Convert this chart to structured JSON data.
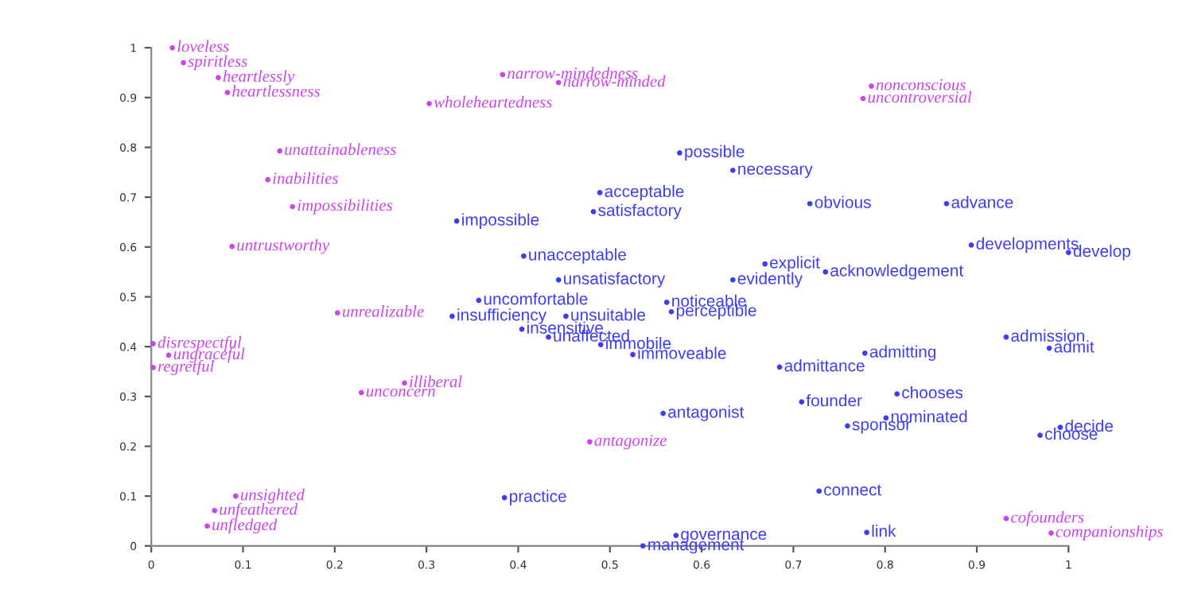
{
  "chart_data": {
    "type": "scatter",
    "marker": "circle",
    "xlim": [
      0,
      1
    ],
    "ylim": [
      0,
      1
    ],
    "xticks": [
      0,
      0.1,
      0.2,
      0.3,
      0.4,
      0.5,
      0.6,
      0.7,
      0.8,
      0.9,
      1
    ],
    "yticks": [
      0,
      0.1,
      0.2,
      0.3,
      0.4,
      0.5,
      0.6,
      0.7,
      0.8,
      0.9,
      1
    ],
    "grid": false,
    "series": [
      {
        "color": "#cc44ee",
        "x": [
          0.023,
          0.035,
          0.073,
          0.083,
          0.383,
          0.444,
          0.303,
          0.785,
          0.776,
          0.14,
          0.127,
          0.154,
          0.088,
          0.203,
          0.002,
          0.019,
          0.002,
          0.276,
          0.229,
          0.478,
          0.092,
          0.069,
          0.061,
          0.932,
          0.981
        ],
        "values": [
          1.0,
          0.97,
          0.94,
          0.91,
          0.946,
          0.93,
          0.888,
          0.923,
          0.898,
          0.793,
          0.735,
          0.681,
          0.601,
          0.468,
          0.406,
          0.383,
          0.358,
          0.327,
          0.308,
          0.209,
          0.1,
          0.071,
          0.04,
          0.055,
          0.026
        ],
        "value_labels": [
          "loveless",
          "spiritless",
          "heartlessly",
          "heartlessness",
          "narrow-mindedness",
          "narrow-minded",
          "wholeheartedness",
          "nonconscious",
          "uncontroversial",
          "unattainableness",
          "inabilities",
          "impossibilities",
          "untrustworthy",
          "unrealizable",
          "disrespectful",
          "ungraceful",
          "regretful",
          "illiberal",
          "unconcern",
          "antagonize",
          "unsighted",
          "unfeathered",
          "unfledged",
          "cofounders",
          "companionships"
        ]
      },
      {
        "color": "#3d3df5",
        "x": [
          0.333,
          0.489,
          0.482,
          0.406,
          0.444,
          0.576,
          0.634,
          0.718,
          0.867,
          0.894,
          1.0,
          0.669,
          0.634,
          0.735,
          0.357,
          0.328,
          0.452,
          0.404,
          0.433,
          0.49,
          0.525,
          0.562,
          0.567,
          0.685,
          0.778,
          0.932,
          0.979,
          0.558,
          0.709,
          0.813,
          0.801,
          0.759,
          0.991,
          0.969,
          0.385,
          0.728,
          0.572,
          0.536,
          0.78
        ],
        "values": [
          0.652,
          0.709,
          0.671,
          0.582,
          0.534,
          0.789,
          0.754,
          0.687,
          0.687,
          0.604,
          0.589,
          0.566,
          0.534,
          0.55,
          0.493,
          0.461,
          0.461,
          0.435,
          0.419,
          0.404,
          0.384,
          0.489,
          0.47,
          0.359,
          0.387,
          0.419,
          0.397,
          0.266,
          0.289,
          0.305,
          0.257,
          0.241,
          0.238,
          0.222,
          0.097,
          0.11,
          0.021,
          0.0,
          0.027
        ],
        "value_labels": [
          "impossible",
          "acceptable",
          "satisfactory",
          "unacceptable",
          "unsatisfactory",
          "possible",
          "necessary",
          "obvious",
          "advance",
          "developments",
          "develop",
          "explicit",
          "evidently",
          "acknowledgement",
          "uncomfortable",
          "insufficiency",
          "unsuitable",
          "insensitive",
          "unaffected",
          "immobile",
          "immoveable",
          "noticeable",
          "perceptible",
          "admittance",
          "admitting",
          "admission",
          "admit",
          "antagonist",
          "founder",
          "chooses",
          "nominated",
          "sponsor",
          "decide",
          "choose",
          "practice",
          "connect",
          "governance",
          "management",
          "link"
        ]
      }
    ]
  }
}
